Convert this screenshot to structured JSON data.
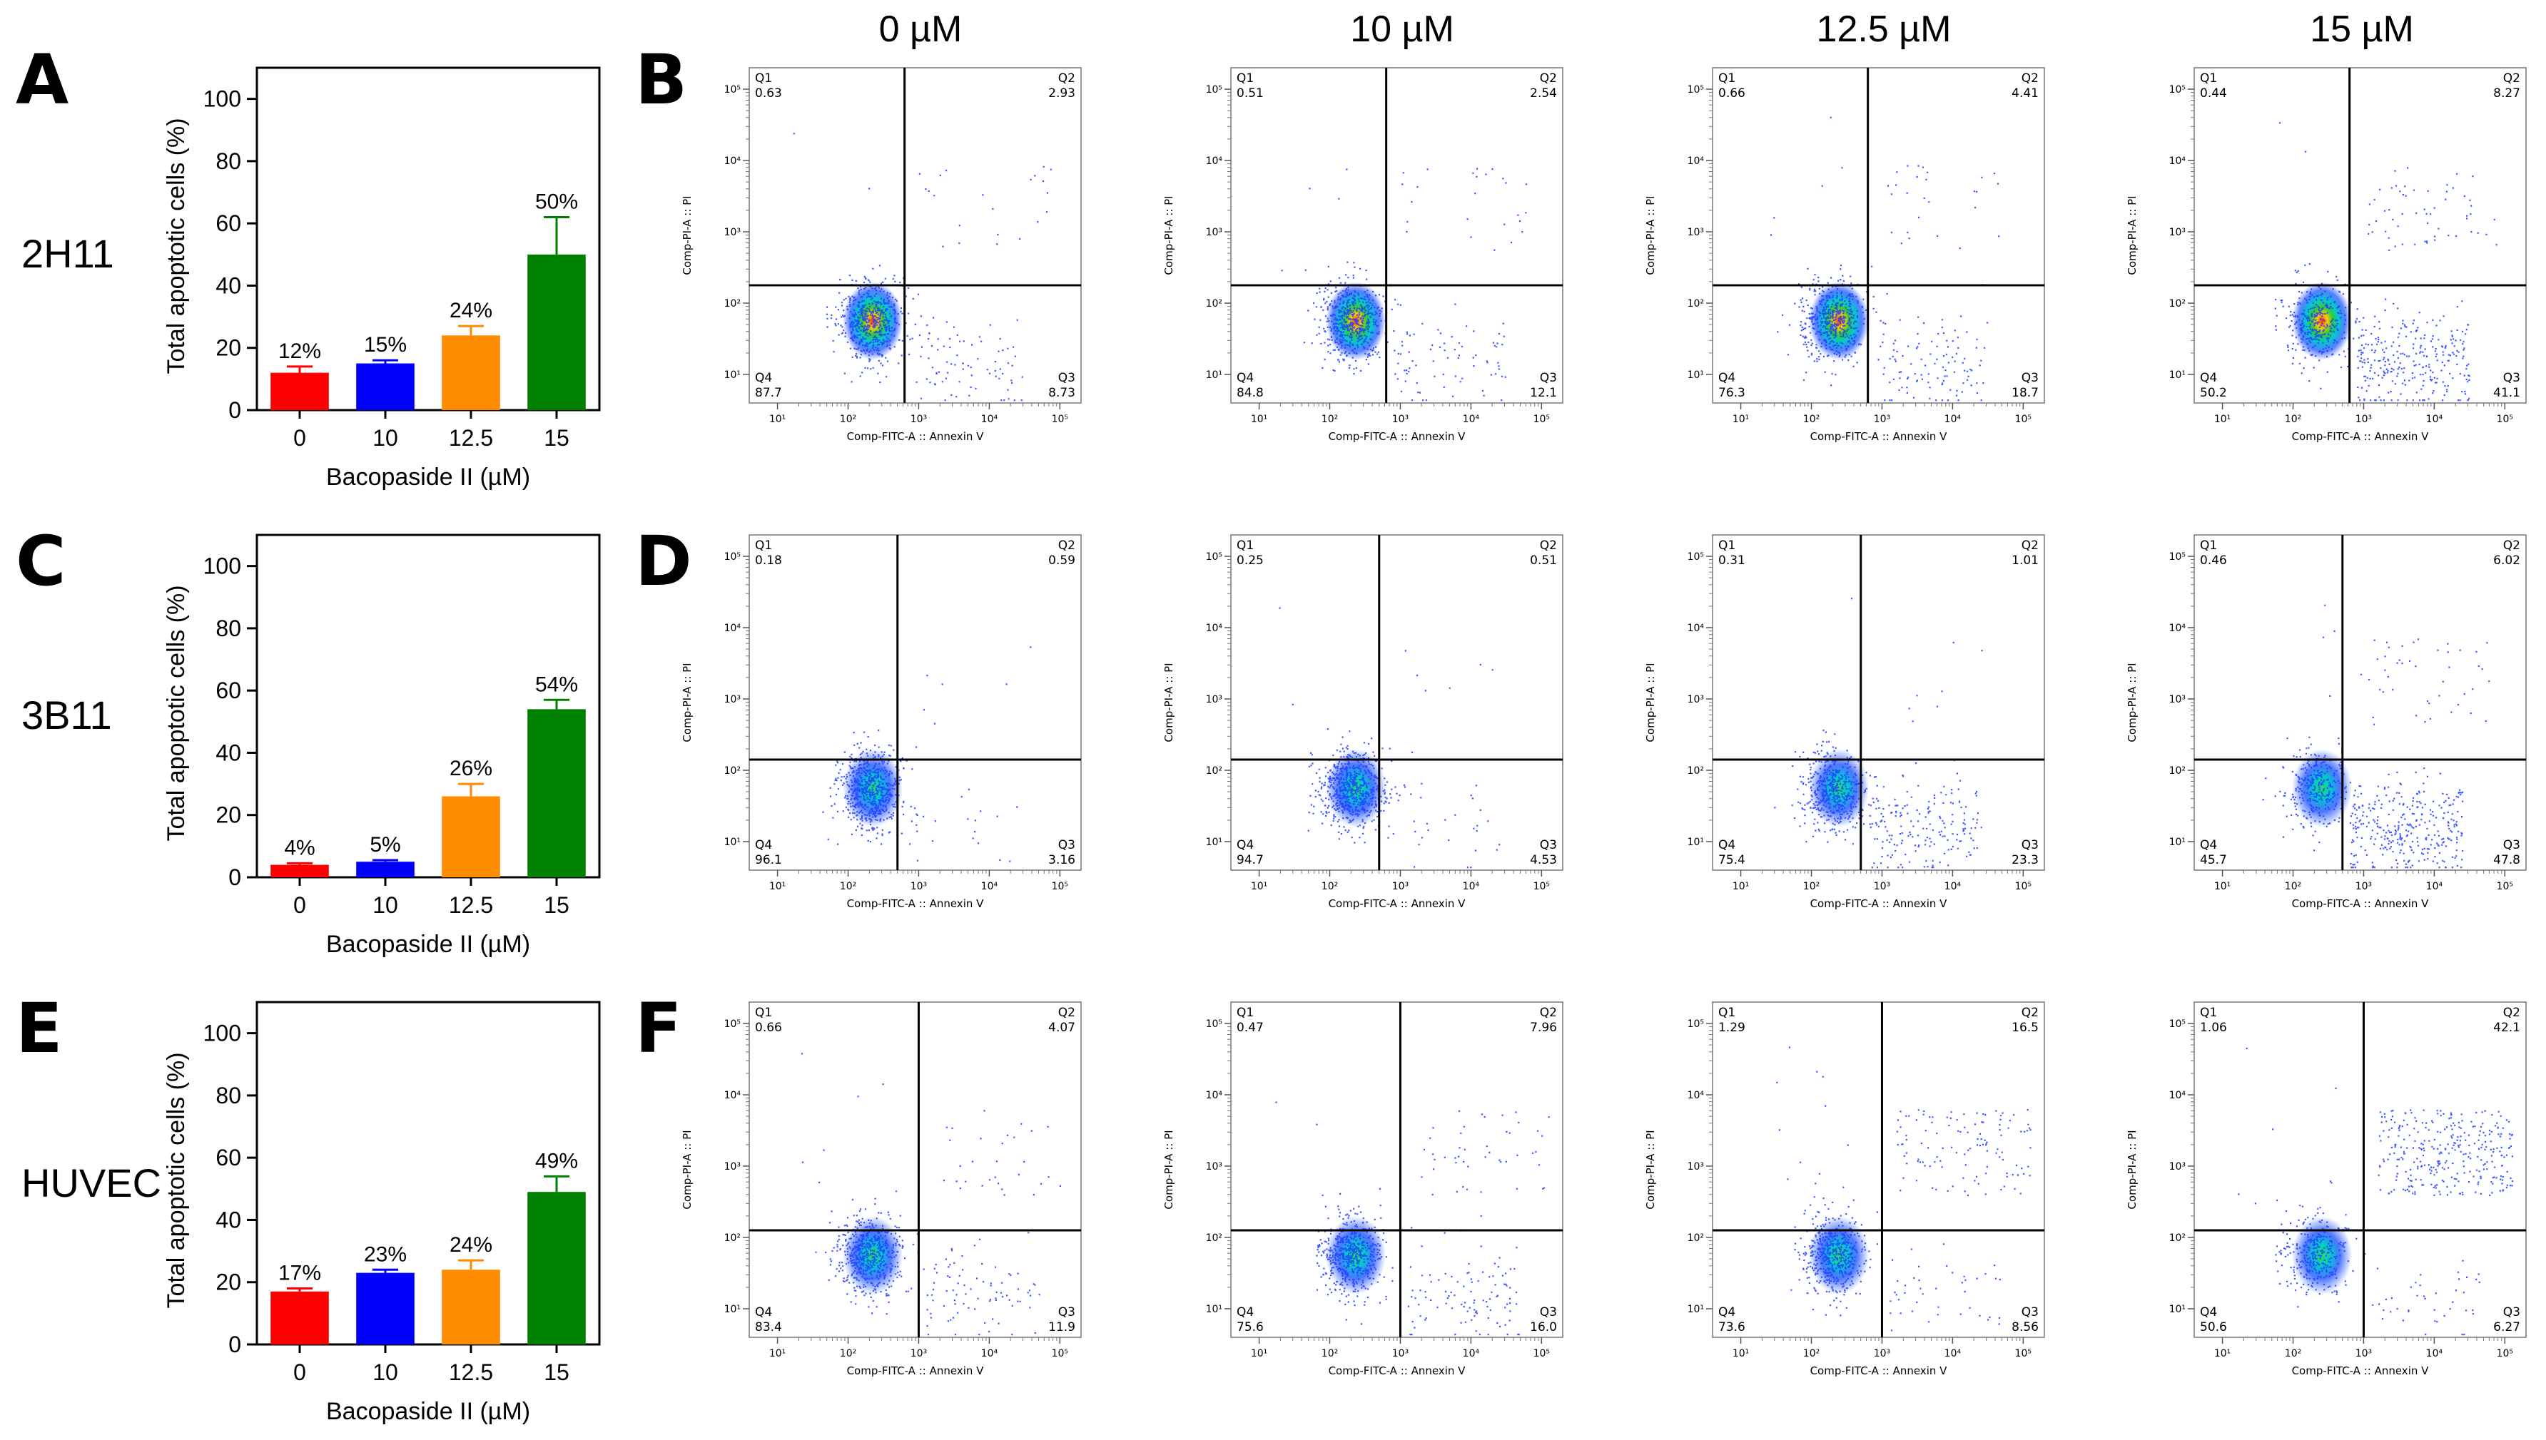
{
  "panel_letters": [
    "A",
    "B",
    "C",
    "D",
    "E",
    "F"
  ],
  "cell_lines": [
    "2H11",
    "3B11",
    "HUVEC"
  ],
  "concentration_headers": [
    "0 µM",
    "10 µM",
    "12.5 µM",
    "15 µM"
  ],
  "colors": {
    "bar_0": "#ff0000",
    "bar_10": "#0000ff",
    "bar_12_5": "#ff8c00",
    "bar_15": "#008000"
  },
  "chart_data": [
    {
      "type": "bar",
      "panel": "A",
      "row_label": "2H11",
      "categories": [
        "0",
        "10",
        "12.5",
        "15"
      ],
      "values": [
        12,
        15,
        24,
        50
      ],
      "errors": [
        2,
        1,
        3,
        12
      ],
      "value_labels": [
        "12%",
        "15%",
        "24%",
        "50%"
      ],
      "xlabel": "Bacopaside II (µM)",
      "ylabel": "Total apoptotic cells (%)",
      "ylim": [
        0,
        110
      ],
      "yticks": [
        "0",
        "20",
        "40",
        "60",
        "80",
        "100"
      ]
    },
    {
      "type": "bar",
      "panel": "C",
      "row_label": "3B11",
      "categories": [
        "0",
        "10",
        "12.5",
        "15"
      ],
      "values": [
        4,
        5,
        26,
        54
      ],
      "errors": [
        0.5,
        0.5,
        4,
        3
      ],
      "value_labels": [
        "4%",
        "5%",
        "26%",
        "54%"
      ],
      "xlabel": "Bacopaside II (µM)",
      "ylabel": "Total apoptotic cells (%)",
      "ylim": [
        0,
        110
      ],
      "yticks": [
        "0",
        "20",
        "40",
        "60",
        "80",
        "100"
      ]
    },
    {
      "type": "bar",
      "panel": "E",
      "row_label": "HUVEC",
      "categories": [
        "0",
        "10",
        "12.5",
        "15"
      ],
      "values": [
        17,
        23,
        24,
        49
      ],
      "errors": [
        1,
        1,
        3,
        5
      ],
      "value_labels": [
        "17%",
        "23%",
        "24%",
        "49%"
      ],
      "xlabel": "Bacopaside II (µM)",
      "ylabel": "Total apoptotic cells (%)",
      "ylim": [
        0,
        110
      ],
      "yticks": [
        "0",
        "20",
        "40",
        "60",
        "80",
        "100"
      ]
    },
    {
      "type": "scatter",
      "panel": "B",
      "row_label": "2H11",
      "xlabel": "Comp-FITC-A :: Annexin V",
      "ylabel": "Comp-PI-A :: PI",
      "x_ticks": [
        "10¹",
        "10²",
        "10³",
        "10⁴",
        "10⁵"
      ],
      "y_ticks": [
        "10¹",
        "10²",
        "10³",
        "10⁴",
        "10⁵"
      ],
      "quadrant_names": [
        "Q1",
        "Q2",
        "Q3",
        "Q4"
      ],
      "gate_log": {
        "x": 2.8,
        "y": 2.25
      },
      "plots": [
        {
          "concentration": "0 µM",
          "Q1": "0.63",
          "Q2": "2.93",
          "Q3": "8.73",
          "Q4": "87.7"
        },
        {
          "concentration": "10 µM",
          "Q1": "0.51",
          "Q2": "2.54",
          "Q3": "12.1",
          "Q4": "84.8"
        },
        {
          "concentration": "12.5 µM",
          "Q1": "0.66",
          "Q2": "4.41",
          "Q3": "18.7",
          "Q4": "76.3"
        },
        {
          "concentration": "15 µM",
          "Q1": "0.44",
          "Q2": "8.27",
          "Q3": "41.1",
          "Q4": "50.2"
        }
      ]
    },
    {
      "type": "scatter",
      "panel": "D",
      "row_label": "3B11",
      "xlabel": "Comp-FITC-A :: Annexin V",
      "ylabel": "Comp-PI-A :: PI",
      "x_ticks": [
        "10¹",
        "10²",
        "10³",
        "10⁴",
        "10⁵"
      ],
      "y_ticks": [
        "10¹",
        "10²",
        "10³",
        "10⁴",
        "10⁵"
      ],
      "quadrant_names": [
        "Q1",
        "Q2",
        "Q3",
        "Q4"
      ],
      "gate_log": {
        "x": 2.7,
        "y": 2.15
      },
      "plots": [
        {
          "concentration": "0 µM",
          "Q1": "0.18",
          "Q2": "0.59",
          "Q3": "3.16",
          "Q4": "96.1"
        },
        {
          "concentration": "10 µM",
          "Q1": "0.25",
          "Q2": "0.51",
          "Q3": "4.53",
          "Q4": "94.7"
        },
        {
          "concentration": "12.5 µM",
          "Q1": "0.31",
          "Q2": "1.01",
          "Q3": "23.3",
          "Q4": "75.4"
        },
        {
          "concentration": "15 µM",
          "Q1": "0.46",
          "Q2": "6.02",
          "Q3": "47.8",
          "Q4": "45.7"
        }
      ]
    },
    {
      "type": "scatter",
      "panel": "F",
      "row_label": "HUVEC",
      "xlabel": "Comp-FITC-A :: Annexin V",
      "ylabel": "Comp-PI-A :: PI",
      "x_ticks": [
        "10¹",
        "10²",
        "10³",
        "10⁴",
        "10⁵"
      ],
      "y_ticks": [
        "10¹",
        "10²",
        "10³",
        "10⁴",
        "10⁵"
      ],
      "quadrant_names": [
        "Q1",
        "Q2",
        "Q3",
        "Q4"
      ],
      "gate_log": {
        "x": 3.0,
        "y": 2.1
      },
      "plots": [
        {
          "concentration": "0 µM",
          "Q1": "0.66",
          "Q2": "4.07",
          "Q3": "11.9",
          "Q4": "83.4"
        },
        {
          "concentration": "10 µM",
          "Q1": "0.47",
          "Q2": "7.96",
          "Q3": "16.0",
          "Q4": "75.6"
        },
        {
          "concentration": "12.5 µM",
          "Q1": "1.29",
          "Q2": "16.5",
          "Q3": "8.56",
          "Q4": "73.6"
        },
        {
          "concentration": "15 µM",
          "Q1": "1.06",
          "Q2": "42.1",
          "Q3": "6.27",
          "Q4": "50.6"
        }
      ]
    }
  ]
}
